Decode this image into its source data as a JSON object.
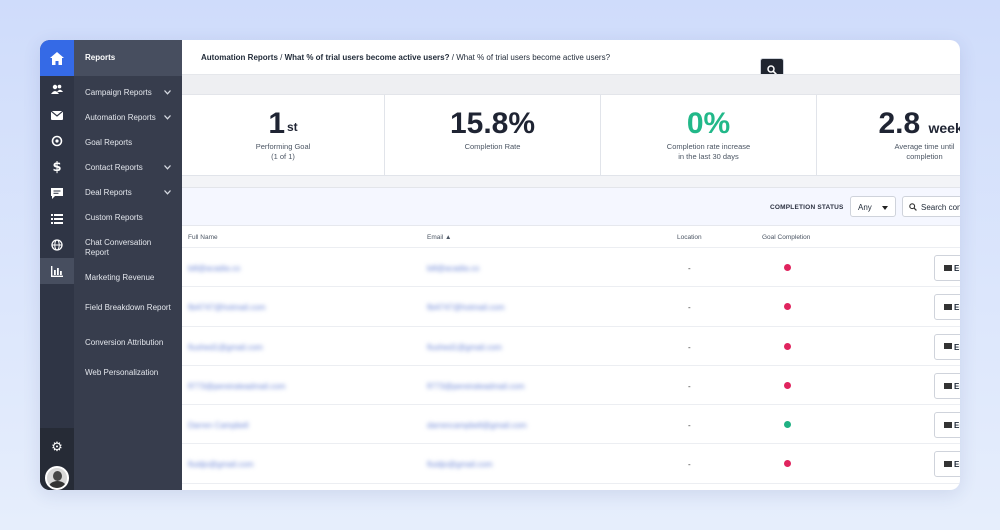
{
  "breadcrumb": {
    "part1": "Automation Reports",
    "separator": " / ",
    "part2": "What % of trial users become active users?",
    "part3": "What % of trial users become active users?"
  },
  "subnav": {
    "title": "Reports",
    "items": [
      {
        "label": "Campaign Reports",
        "chevron": true
      },
      {
        "label": "Automation Reports",
        "chevron": true
      },
      {
        "label": "Goal Reports",
        "chevron": false
      },
      {
        "label": "Contact Reports",
        "chevron": true
      },
      {
        "label": "Deal Reports",
        "chevron": true
      },
      {
        "label": "Custom Reports",
        "chevron": false
      },
      {
        "label": "Chat Conversation Report",
        "chevron": false
      },
      {
        "label": "Marketing Revenue",
        "chevron": false
      },
      {
        "label": "Field Breakdown Report",
        "chevron": false
      },
      {
        "label": "Conversion Attribution",
        "chevron": false
      },
      {
        "label": "Web Personalization",
        "chevron": false
      }
    ]
  },
  "stats": [
    {
      "value": "1",
      "suffix": "st",
      "label1": "Performing Goal",
      "label2": "(1 of 1)"
    },
    {
      "value": "15.8%",
      "label1": "Completion Rate",
      "label2": ""
    },
    {
      "value": "0%",
      "label1": "Completion rate increase",
      "label2": "in the last 30 days"
    },
    {
      "value": "2.8",
      "unit": "weeks",
      "label1": "Average time until",
      "label2": "completion"
    }
  ],
  "filters": {
    "status_label": "COMPLETION STATUS",
    "status_value": "Any",
    "search_placeholder": "Search contacts"
  },
  "table": {
    "headers": {
      "name": "Full Name",
      "email": "Email ▲",
      "location": "Location",
      "goal": "Goal Completion"
    },
    "action_label": "Email",
    "rows": [
      {
        "name": "bill@acadia.co",
        "email": "bill@acadia.co",
        "location": "-",
        "completed": false
      },
      {
        "name": "fbi4747@hotmail.com",
        "email": "fbi4747@hotmail.com",
        "location": "-",
        "completed": false
      },
      {
        "name": "flushed1@gmail.com",
        "email": "flushed1@gmail.com",
        "location": "-",
        "completed": false
      },
      {
        "name": "fl773@pereiraleadmail.com",
        "email": "fl773@pereiraleadmail.com",
        "location": "-",
        "completed": false
      },
      {
        "name": "Darren Campbell",
        "email": "darrencampbell@gmail.com",
        "location": "-",
        "completed": true
      },
      {
        "name": "fluidjo@gmail.com",
        "email": "fluidjo@gmail.com",
        "location": "-",
        "completed": false
      }
    ]
  },
  "colors": {
    "accent": "#356ae6",
    "success": "#22b889",
    "incomplete_dot": "#e0245e",
    "complete_dot": "#1fb183",
    "sidebar": "#373d4d"
  }
}
